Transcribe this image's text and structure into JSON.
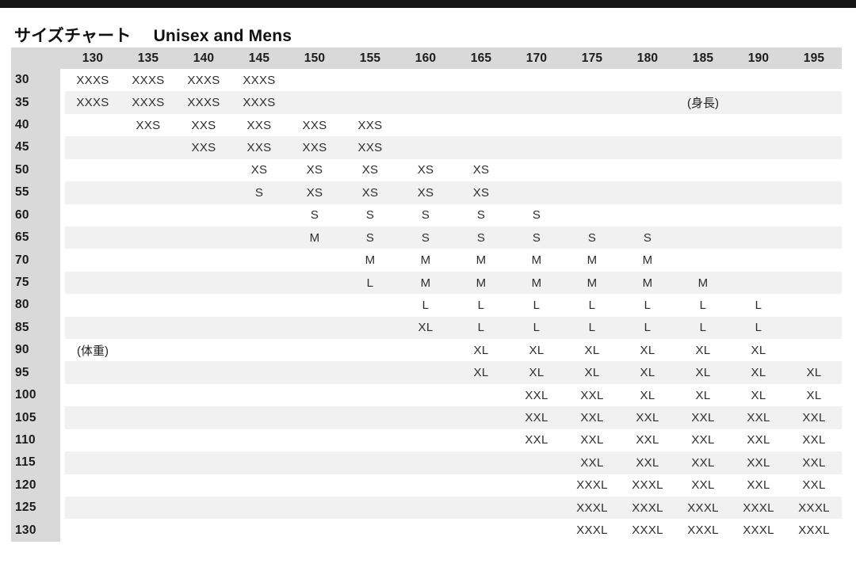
{
  "title": {
    "jp": "サイズチャート",
    "en": "Unisex and Mens"
  },
  "annotations": {
    "height_unit_note": "(身長)",
    "weight_unit_note": "(体重)"
  },
  "colors": {
    "top_bar": "#151515",
    "header_bg": "#d9d9d9",
    "stripe_bg": "#f1f1f1",
    "title_text": "#111111",
    "cell_text": "#2d2d2d"
  },
  "chart_data": {
    "type": "table",
    "title": "サイズチャート Unisex and Mens",
    "columns_axis": "height (cm) 身長",
    "rows_axis": "weight (kg) 体重",
    "columns": [
      "130",
      "135",
      "140",
      "145",
      "150",
      "155",
      "160",
      "165",
      "170",
      "175",
      "180",
      "185",
      "190",
      "195"
    ],
    "rows": [
      {
        "label": "30",
        "cells": [
          "XXXS",
          "XXXS",
          "XXXS",
          "XXXS",
          "",
          "",
          "",
          "",
          "",
          "",
          "",
          "",
          "",
          ""
        ]
      },
      {
        "label": "35",
        "cells": [
          "XXXS",
          "XXXS",
          "XXXS",
          "XXXS",
          "",
          "",
          "",
          "",
          "",
          "",
          "",
          "(身長)",
          "",
          ""
        ]
      },
      {
        "label": "40",
        "cells": [
          "",
          "XXS",
          "XXS",
          "XXS",
          "XXS",
          "XXS",
          "",
          "",
          "",
          "",
          "",
          "",
          "",
          ""
        ]
      },
      {
        "label": "45",
        "cells": [
          "",
          "",
          "XXS",
          "XXS",
          "XXS",
          "XXS",
          "",
          "",
          "",
          "",
          "",
          "",
          "",
          ""
        ]
      },
      {
        "label": "50",
        "cells": [
          "",
          "",
          "",
          "XS",
          "XS",
          "XS",
          "XS",
          "XS",
          "",
          "",
          "",
          "",
          "",
          ""
        ]
      },
      {
        "label": "55",
        "cells": [
          "",
          "",
          "",
          "S",
          "XS",
          "XS",
          "XS",
          "XS",
          "",
          "",
          "",
          "",
          "",
          ""
        ]
      },
      {
        "label": "60",
        "cells": [
          "",
          "",
          "",
          "",
          "S",
          "S",
          "S",
          "S",
          "S",
          "",
          "",
          "",
          "",
          ""
        ]
      },
      {
        "label": "65",
        "cells": [
          "",
          "",
          "",
          "",
          "M",
          "S",
          "S",
          "S",
          "S",
          "S",
          "S",
          "",
          "",
          ""
        ]
      },
      {
        "label": "70",
        "cells": [
          "",
          "",
          "",
          "",
          "",
          "M",
          "M",
          "M",
          "M",
          "M",
          "M",
          "",
          "",
          ""
        ]
      },
      {
        "label": "75",
        "cells": [
          "",
          "",
          "",
          "",
          "",
          "L",
          "M",
          "M",
          "M",
          "M",
          "M",
          "M",
          "",
          ""
        ]
      },
      {
        "label": "80",
        "cells": [
          "",
          "",
          "",
          "",
          "",
          "",
          "L",
          "L",
          "L",
          "L",
          "L",
          "L",
          "L",
          ""
        ]
      },
      {
        "label": "85",
        "cells": [
          "",
          "",
          "",
          "",
          "",
          "",
          "XL",
          "L",
          "L",
          "L",
          "L",
          "L",
          "L",
          ""
        ]
      },
      {
        "label": "90",
        "cells": [
          "(体重)",
          "",
          "",
          "",
          "",
          "",
          "",
          "XL",
          "XL",
          "XL",
          "XL",
          "XL",
          "XL",
          ""
        ]
      },
      {
        "label": "95",
        "cells": [
          "",
          "",
          "",
          "",
          "",
          "",
          "",
          "XL",
          "XL",
          "XL",
          "XL",
          "XL",
          "XL",
          "XL"
        ]
      },
      {
        "label": "100",
        "cells": [
          "",
          "",
          "",
          "",
          "",
          "",
          "",
          "",
          "XXL",
          "XXL",
          "XL",
          "XL",
          "XL",
          "XL"
        ]
      },
      {
        "label": "105",
        "cells": [
          "",
          "",
          "",
          "",
          "",
          "",
          "",
          "",
          "XXL",
          "XXL",
          "XXL",
          "XXL",
          "XXL",
          "XXL"
        ]
      },
      {
        "label": "110",
        "cells": [
          "",
          "",
          "",
          "",
          "",
          "",
          "",
          "",
          "XXL",
          "XXL",
          "XXL",
          "XXL",
          "XXL",
          "XXL"
        ]
      },
      {
        "label": "115",
        "cells": [
          "",
          "",
          "",
          "",
          "",
          "",
          "",
          "",
          "",
          "XXL",
          "XXL",
          "XXL",
          "XXL",
          "XXL"
        ]
      },
      {
        "label": "120",
        "cells": [
          "",
          "",
          "",
          "",
          "",
          "",
          "",
          "",
          "",
          "XXXL",
          "XXXL",
          "XXL",
          "XXL",
          "XXL"
        ]
      },
      {
        "label": "125",
        "cells": [
          "",
          "",
          "",
          "",
          "",
          "",
          "",
          "",
          "",
          "XXXL",
          "XXXL",
          "XXXL",
          "XXXL",
          "XXXL"
        ]
      },
      {
        "label": "130",
        "cells": [
          "",
          "",
          "",
          "",
          "",
          "",
          "",
          "",
          "",
          "XXXL",
          "XXXL",
          "XXXL",
          "XXXL",
          "XXXL"
        ]
      }
    ]
  }
}
